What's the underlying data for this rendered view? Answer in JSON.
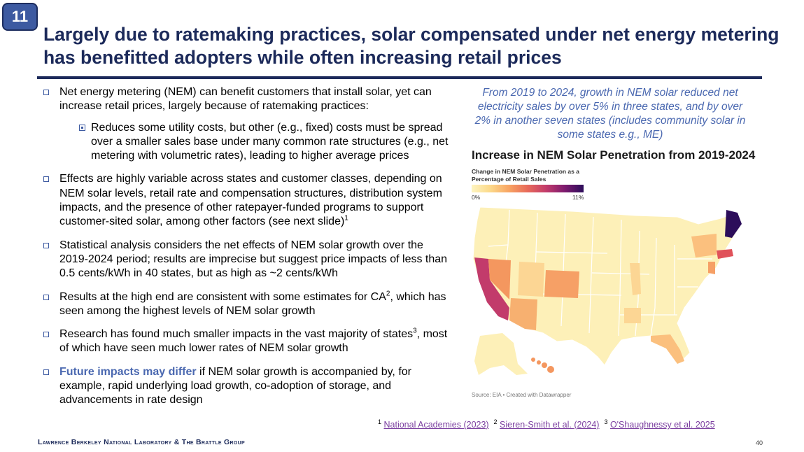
{
  "slide": {
    "number_badge": "11",
    "title": "Largely due to ratemaking practices, solar compensated under net energy metering has benefitted adopters while often increasing retail prices",
    "page_number": "40",
    "footer_org": "Lawrence Berkeley National Laboratory & The Brattle Group"
  },
  "bullets": {
    "b1": "Net energy metering (NEM) can benefit customers that install solar, yet can increase retail prices, largely because of ratemaking practices:",
    "b1_sub": "Reduces some utility costs, but other (e.g., fixed) costs must be spread over a smaller sales base under many common rate structures (e.g., net metering with volumetric rates), leading to higher average prices",
    "b2": "Effects are highly variable across states and customer classes, depending on NEM solar levels, retail rate and compensation structures, distribution system impacts, and the presence of other ratepayer-funded programs to support customer-sited solar, among other factors (see next slide)",
    "b2_sup": "1",
    "b3": "Statistical analysis considers the net effects of NEM solar growth over the 2019-2024 period; results are imprecise but suggest price impacts of less than 0.5 cents/kWh in 40 states, but as high as ~2 cents/kWh",
    "b4_pre": "Results at the high end are consistent with some estimates for CA",
    "b4_sup": "2",
    "b4_post": ", which has seen among the highest levels of NEM solar growth",
    "b5_pre": "Research has found much smaller impacts in the vast majority of states",
    "b5_sup": "3",
    "b5_post": ", most of which have seen much lower rates of NEM solar growth",
    "b6_highlight": "Future impacts may differ",
    "b6_rest": " if NEM solar growth is accompanied by, for example, rapid underlying load growth, co-adoption of storage, and advancements in rate design"
  },
  "callout": "From 2019 to 2024, growth in NEM solar reduced net electricity sales by over 5% in three states, and by over 2% in another seven states (includes community solar in some states e.g., ME)",
  "map": {
    "title": "Increase in NEM Solar Penetration from 2019-2024",
    "legend_title": "Change in NEM Solar Penetration as a Percentage of Retail Sales",
    "legend_min": "0%",
    "legend_max": "11%",
    "source": "Source: EIA • Created with Datawrapper",
    "colors": {
      "low": "#fdf0b8",
      "mid": "#f8a463",
      "high": "#c23b6b",
      "max": "#2c0d5a"
    }
  },
  "footnotes": {
    "n1": "1",
    "l1": "National Academies (2023)",
    "n2": "2",
    "l2": "Sieren-Smith et al. (2024)",
    "n3": "3",
    "l3": "O'Shaughnessy et al. 2025"
  }
}
